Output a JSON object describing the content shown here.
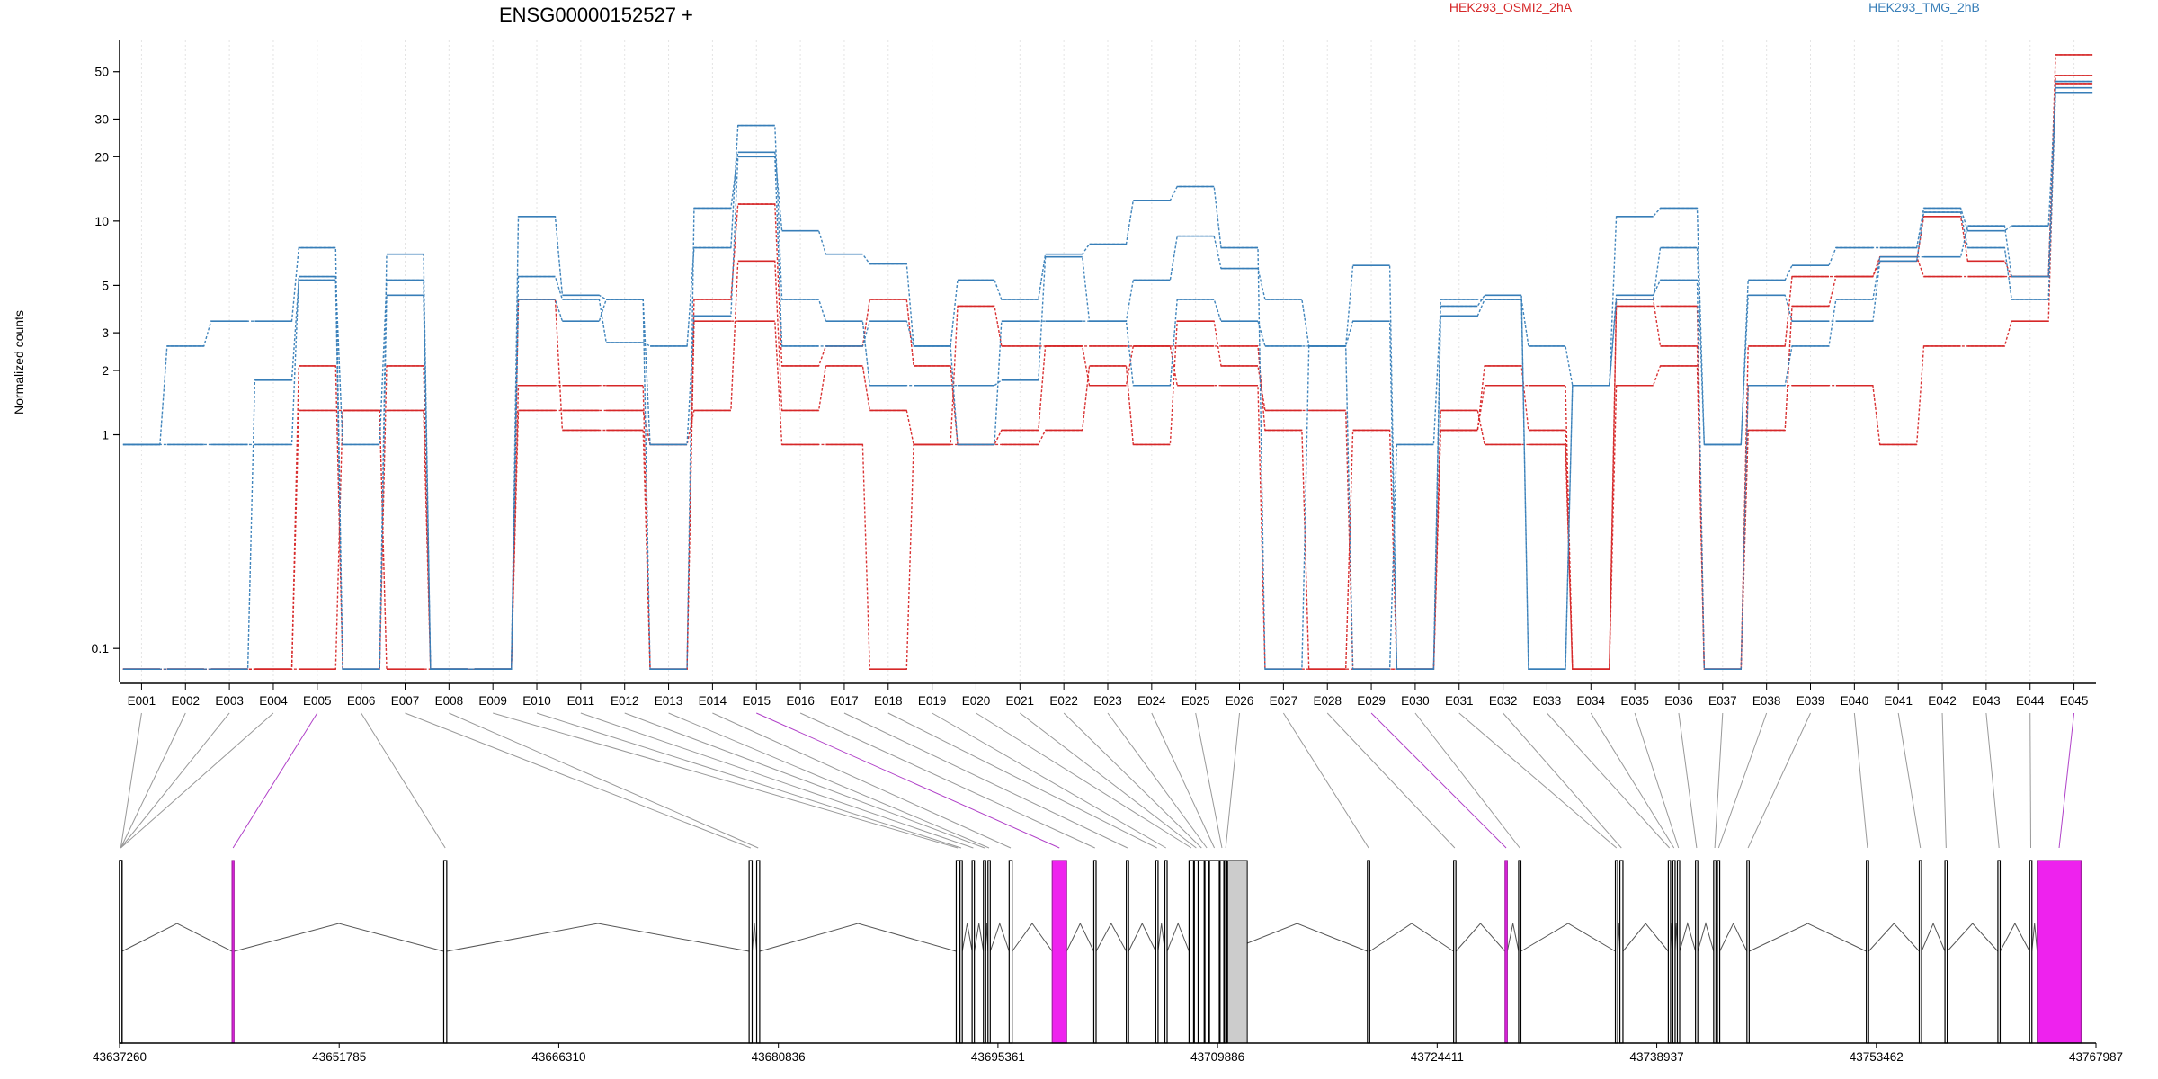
{
  "chart_data": {
    "type": "line",
    "title": "ENSG00000152527 +",
    "ylabel": "Normalized counts",
    "yscale": "log",
    "ylim": [
      0.07,
      70
    ],
    "yticks": [
      0.1,
      1,
      2,
      3,
      5,
      10,
      20,
      30,
      50
    ],
    "grid": "vertical dotted",
    "legend_position": "top",
    "colors": {
      "HEK293_OSMI2_2hA": "#d62728",
      "HEK293_TMG_2hB": "#377eb8",
      "exon_highlight": "#ee22ee",
      "intron_line": "#555555",
      "exon_box": "#000000",
      "exon_gray": "#cccccc"
    },
    "categories": [
      "E001",
      "E002",
      "E003",
      "E004",
      "E005",
      "E006",
      "E007",
      "E008",
      "E009",
      "E010",
      "E011",
      "E012",
      "E013",
      "E014",
      "E015",
      "E016",
      "E017",
      "E018",
      "E019",
      "E020",
      "E021",
      "E022",
      "E023",
      "E024",
      "E025",
      "E026",
      "E027",
      "E028",
      "E029",
      "E030",
      "E031",
      "E032",
      "E033",
      "E034",
      "E035",
      "E036",
      "E037",
      "E038",
      "E039",
      "E040",
      "E041",
      "E042",
      "E043",
      "E044",
      "E045"
    ],
    "highlighted_exons": [
      "E005",
      "E015",
      "E029",
      "E045"
    ],
    "series": [
      {
        "name": "HEK293_OSMI2_2hA",
        "group": "red",
        "values": [
          0.08,
          0.08,
          0.08,
          0.08,
          2.1,
          0.08,
          2.1,
          0.08,
          0.08,
          1.7,
          1.7,
          1.7,
          0.08,
          4.3,
          12.0,
          2.1,
          2.6,
          4.3,
          2.1,
          0.9,
          1.05,
          2.6,
          2.6,
          2.6,
          2.6,
          2.6,
          1.05,
          0.08,
          0.08,
          0.08,
          1.05,
          2.1,
          1.05,
          0.08,
          1.7,
          2.1,
          0.08,
          1.7,
          1.7,
          1.7,
          0.9,
          2.6,
          2.6,
          3.4,
          48.0
        ]
      },
      {
        "name": "HEK293_OSMI2_2hA",
        "group": "red",
        "values": [
          0.08,
          0.08,
          0.08,
          0.08,
          1.3,
          1.3,
          1.3,
          0.08,
          0.08,
          1.3,
          1.3,
          1.3,
          0.9,
          1.3,
          6.5,
          1.3,
          2.1,
          1.3,
          0.9,
          0.9,
          0.9,
          1.05,
          2.1,
          0.9,
          3.4,
          2.1,
          1.3,
          1.3,
          0.08,
          0.08,
          1.3,
          0.9,
          0.9,
          0.08,
          4.3,
          2.6,
          0.08,
          1.05,
          4.0,
          5.5,
          6.5,
          10.5,
          6.5,
          5.5,
          60.0
        ]
      },
      {
        "name": "HEK293_OSMI2_2hA",
        "group": "red",
        "values": [
          0.08,
          0.08,
          0.08,
          0.08,
          0.08,
          1.3,
          0.08,
          0.08,
          0.08,
          4.3,
          1.05,
          1.05,
          0.08,
          3.4,
          3.4,
          0.9,
          0.9,
          0.08,
          0.9,
          4.0,
          2.6,
          2.6,
          1.7,
          2.6,
          1.7,
          1.7,
          0.08,
          0.08,
          1.05,
          0.08,
          1.05,
          1.7,
          1.7,
          0.08,
          4.0,
          4.0,
          0.08,
          2.6,
          5.5,
          5.5,
          6.8,
          5.5,
          5.5,
          5.5,
          44.0
        ]
      },
      {
        "name": "HEK293_TMG_2hB",
        "group": "blue",
        "values": [
          0.9,
          2.6,
          3.4,
          3.4,
          7.5,
          0.08,
          7.0,
          0.08,
          0.08,
          10.5,
          4.5,
          4.3,
          0.08,
          11.5,
          21.0,
          9.0,
          7.0,
          6.3,
          2.6,
          5.3,
          4.3,
          7.0,
          7.8,
          12.5,
          14.5,
          7.5,
          0.08,
          2.6,
          6.2,
          0.08,
          4.3,
          4.3,
          2.6,
          1.7,
          10.5,
          11.5,
          0.9,
          5.3,
          6.2,
          7.5,
          7.5,
          11.5,
          9.0,
          9.5,
          42.0
        ]
      },
      {
        "name": "HEK293_TMG_2hB",
        "group": "blue",
        "values": [
          0.9,
          0.9,
          0.9,
          0.9,
          5.5,
          0.9,
          5.3,
          0.08,
          0.08,
          5.5,
          4.3,
          2.7,
          2.6,
          7.5,
          28.0,
          4.3,
          3.4,
          1.7,
          1.7,
          1.7,
          1.8,
          6.8,
          3.4,
          5.3,
          8.5,
          6.0,
          4.3,
          2.6,
          0.08,
          0.9,
          4.0,
          4.5,
          0.08,
          1.7,
          4.3,
          7.5,
          0.9,
          4.5,
          3.4,
          3.4,
          6.5,
          11.0,
          7.5,
          4.3,
          40.0
        ]
      },
      {
        "name": "HEK293_TMG_2hB",
        "group": "blue",
        "values": [
          0.08,
          0.08,
          0.08,
          1.8,
          5.3,
          0.08,
          4.5,
          0.08,
          0.08,
          4.3,
          3.4,
          4.3,
          0.9,
          3.6,
          20.0,
          2.6,
          2.6,
          3.4,
          2.6,
          0.9,
          3.4,
          3.4,
          3.4,
          1.7,
          4.3,
          3.4,
          2.6,
          2.6,
          3.4,
          0.08,
          3.6,
          4.3,
          0.08,
          1.7,
          4.5,
          5.3,
          0.08,
          1.7,
          2.6,
          4.3,
          6.8,
          6.8,
          9.5,
          5.5,
          45.0
        ]
      }
    ],
    "genomic_ticks": [
      "43637260",
      "43651785",
      "43666310",
      "43680836",
      "43695361",
      "43709886",
      "43724411",
      "43738937",
      "43753462",
      "43767987"
    ],
    "genomic_range": [
      43637260,
      43767987
    ],
    "exons": [
      {
        "id": "E001",
        "start": 43637260,
        "end": 43637420
      },
      {
        "id": "E002",
        "start": 43637260,
        "end": 43637420
      },
      {
        "id": "E003",
        "start": 43637260,
        "end": 43637420
      },
      {
        "id": "E004",
        "start": 43637260,
        "end": 43637420
      },
      {
        "id": "E005",
        "start": 43644700,
        "end": 43644830
      },
      {
        "id": "E006",
        "start": 43658700,
        "end": 43658900
      },
      {
        "id": "E007",
        "start": 43678900,
        "end": 43679100
      },
      {
        "id": "E008",
        "start": 43679400,
        "end": 43679600
      },
      {
        "id": "E009",
        "start": 43692600,
        "end": 43692800
      },
      {
        "id": "E010",
        "start": 43692850,
        "end": 43693000
      },
      {
        "id": "E011",
        "start": 43693650,
        "end": 43693800
      },
      {
        "id": "E012",
        "start": 43694400,
        "end": 43694550
      },
      {
        "id": "E013",
        "start": 43694700,
        "end": 43694850
      },
      {
        "id": "E014",
        "start": 43696100,
        "end": 43696300
      },
      {
        "id": "E015",
        "start": 43698950,
        "end": 43699900
      },
      {
        "id": "E016",
        "start": 43701700,
        "end": 43701850
      },
      {
        "id": "E017",
        "start": 43703850,
        "end": 43704000
      },
      {
        "id": "E018",
        "start": 43705800,
        "end": 43705950
      },
      {
        "id": "E019",
        "start": 43706400,
        "end": 43706550
      },
      {
        "id": "E020",
        "start": 43708000,
        "end": 43708300
      },
      {
        "id": "E021",
        "start": 43708350,
        "end": 43708600
      },
      {
        "id": "E022",
        "start": 43708650,
        "end": 43709000
      },
      {
        "id": "E023",
        "start": 43709050,
        "end": 43709300
      },
      {
        "id": "E024",
        "start": 43709350,
        "end": 43710000
      },
      {
        "id": "E025",
        "start": 43710050,
        "end": 43710300
      },
      {
        "id": "E026",
        "start": 43710350,
        "end": 43710500
      },
      {
        "id": "E027",
        "start": 43719800,
        "end": 43719950
      },
      {
        "id": "E028",
        "start": 43725500,
        "end": 43725650
      },
      {
        "id": "E029",
        "start": 43728900,
        "end": 43729050
      },
      {
        "id": "E030",
        "start": 43729800,
        "end": 43729950
      },
      {
        "id": "E031",
        "start": 43736200,
        "end": 43736350
      },
      {
        "id": "E032",
        "start": 43736500,
        "end": 43736700
      },
      {
        "id": "E033",
        "start": 43739700,
        "end": 43739850
      },
      {
        "id": "E034",
        "start": 43740000,
        "end": 43740150
      },
      {
        "id": "E035",
        "start": 43740300,
        "end": 43740450
      },
      {
        "id": "E036",
        "start": 43741500,
        "end": 43741650
      },
      {
        "id": "E037",
        "start": 43742700,
        "end": 43742850
      },
      {
        "id": "E038",
        "start": 43742950,
        "end": 43743100
      },
      {
        "id": "E039",
        "start": 43744900,
        "end": 43745050
      },
      {
        "id": "E040",
        "start": 43752800,
        "end": 43752950
      },
      {
        "id": "E041",
        "start": 43756300,
        "end": 43756450
      },
      {
        "id": "E042",
        "start": 43758000,
        "end": 43758150
      },
      {
        "id": "E043",
        "start": 43761500,
        "end": 43761650
      },
      {
        "id": "E044",
        "start": 43763600,
        "end": 43763750
      },
      {
        "id": "E045",
        "start": 43764100,
        "end": 43767000
      }
    ]
  }
}
